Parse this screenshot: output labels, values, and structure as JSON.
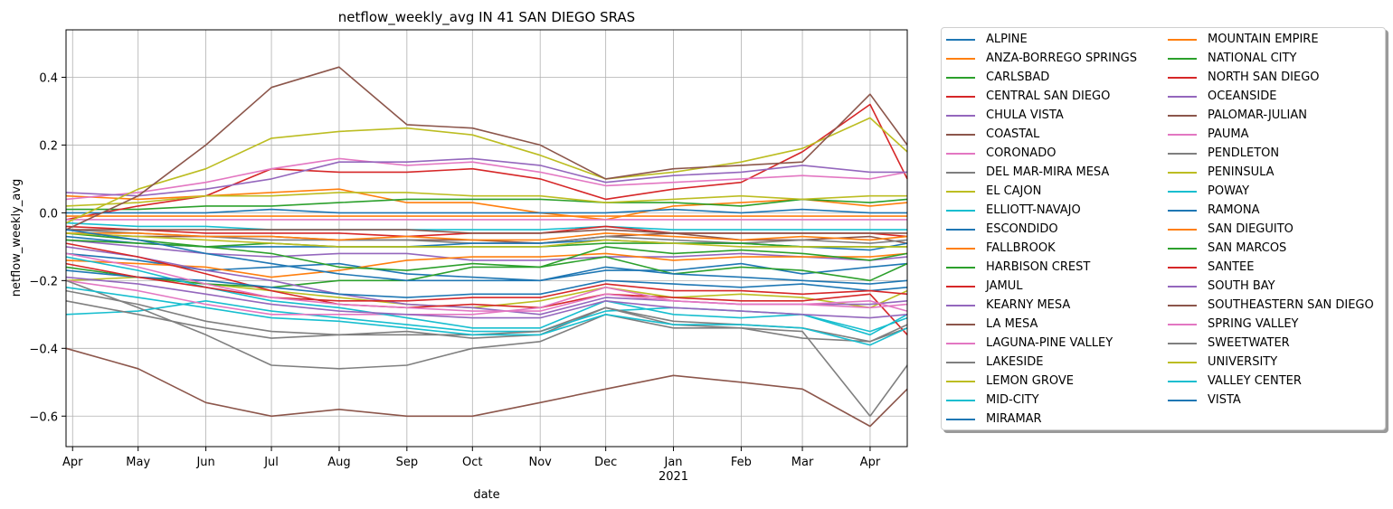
{
  "chart_data": {
    "type": "line",
    "title": "netflow_weekly_avg IN 41 SAN DIEGO SRAS",
    "xlabel": "date",
    "ylabel": "netflow_weekly_avg",
    "xlim": [
      "2020-03-29",
      "2021-04-18"
    ],
    "ylim": [
      -0.69,
      0.54
    ],
    "grid": true,
    "legend_position": "outside-right",
    "x_ticks": [
      {
        "date": "2020-04-01",
        "label": "Apr"
      },
      {
        "date": "2020-05-01",
        "label": "May"
      },
      {
        "date": "2020-06-01",
        "label": "Jun"
      },
      {
        "date": "2020-07-01",
        "label": "Jul"
      },
      {
        "date": "2020-08-01",
        "label": "Aug"
      },
      {
        "date": "2020-09-01",
        "label": "Sep"
      },
      {
        "date": "2020-10-01",
        "label": "Oct"
      },
      {
        "date": "2020-11-01",
        "label": "Nov"
      },
      {
        "date": "2020-12-01",
        "label": "Dec"
      },
      {
        "date": "2021-01-01",
        "label": "Jan"
      },
      {
        "date": "2021-02-01",
        "label": "Feb"
      },
      {
        "date": "2021-03-01",
        "label": "Mar"
      },
      {
        "date": "2021-04-01",
        "label": "Apr"
      }
    ],
    "year_label": {
      "date": "2021-01-01",
      "label": "2021"
    },
    "y_ticks": [
      {
        "value": 0.4,
        "label": "0.4"
      },
      {
        "value": 0.2,
        "label": "0.2"
      },
      {
        "value": 0.0,
        "label": "0.0"
      },
      {
        "value": -0.2,
        "label": "−0.2"
      },
      {
        "value": -0.4,
        "label": "−0.4"
      },
      {
        "value": -0.6,
        "label": "−0.6"
      }
    ],
    "x_dates": [
      "2020-03-29",
      "2020-05-01",
      "2020-06-01",
      "2020-07-01",
      "2020-08-01",
      "2020-09-01",
      "2020-10-01",
      "2020-11-01",
      "2020-12-01",
      "2021-01-01",
      "2021-02-01",
      "2021-03-01",
      "2021-04-01",
      "2021-04-18"
    ],
    "series": [
      {
        "name": "ALPINE",
        "color": "#1f77b4",
        "values": [
          -0.12,
          -0.14,
          -0.17,
          -0.16,
          -0.15,
          -0.18,
          -0.19,
          -0.2,
          -0.17,
          -0.17,
          -0.15,
          -0.18,
          -0.16,
          -0.15
        ]
      },
      {
        "name": "ANZA-BORREGO SPRINGS",
        "color": "#ff7f0e",
        "values": [
          0.05,
          0.04,
          0.05,
          0.06,
          0.07,
          0.03,
          0.03,
          0.0,
          -0.02,
          0.02,
          0.03,
          0.04,
          0.02,
          0.03
        ]
      },
      {
        "name": "CARLSBAD",
        "color": "#2ca02c",
        "values": [
          0.01,
          0.01,
          0.02,
          0.02,
          0.03,
          0.04,
          0.04,
          0.04,
          0.03,
          0.03,
          0.02,
          0.04,
          0.03,
          0.04
        ]
      },
      {
        "name": "CENTRAL SAN DIEGO",
        "color": "#d62728",
        "values": [
          -0.02,
          0.02,
          0.05,
          0.13,
          0.12,
          0.12,
          0.13,
          0.1,
          0.04,
          0.07,
          0.09,
          0.18,
          0.32,
          0.1
        ]
      },
      {
        "name": "CHULA VISTA",
        "color": "#9467bd",
        "values": [
          -0.08,
          -0.1,
          -0.12,
          -0.13,
          -0.12,
          -0.12,
          -0.14,
          -0.14,
          -0.13,
          -0.13,
          -0.12,
          -0.13,
          -0.14,
          -0.13
        ]
      },
      {
        "name": "COASTAL",
        "color": "#8c564b",
        "values": [
          -0.06,
          -0.07,
          -0.07,
          -0.07,
          -0.08,
          -0.08,
          -0.08,
          -0.09,
          -0.07,
          -0.06,
          -0.08,
          -0.08,
          -0.07,
          -0.09
        ]
      },
      {
        "name": "CORONADO",
        "color": "#e377c2",
        "values": [
          -0.02,
          -0.02,
          -0.02,
          -0.02,
          -0.02,
          -0.02,
          -0.02,
          -0.02,
          -0.02,
          -0.02,
          -0.02,
          -0.02,
          -0.02,
          -0.02
        ]
      },
      {
        "name": "DEL MAR-MIRA MESA",
        "color": "#7f7f7f",
        "values": [
          -0.05,
          -0.06,
          -0.07,
          -0.08,
          -0.08,
          -0.08,
          -0.09,
          -0.09,
          -0.07,
          -0.08,
          -0.09,
          -0.08,
          -0.09,
          -0.08
        ]
      },
      {
        "name": "EL CAJON",
        "color": "#bcbd22",
        "values": [
          -0.2,
          -0.19,
          -0.21,
          -0.23,
          -0.25,
          -0.27,
          -0.28,
          -0.26,
          -0.22,
          -0.25,
          -0.24,
          -0.25,
          -0.28,
          -0.23
        ]
      },
      {
        "name": "ELLIOTT-NAVAJO",
        "color": "#17becf",
        "values": [
          -0.03,
          -0.04,
          -0.04,
          -0.05,
          -0.05,
          -0.05,
          -0.05,
          -0.05,
          -0.04,
          -0.05,
          -0.05,
          -0.05,
          -0.05,
          -0.05
        ]
      },
      {
        "name": "ESCONDIDO",
        "color": "#1f77b4",
        "values": [
          -0.07,
          -0.09,
          -0.1,
          -0.1,
          -0.1,
          -0.1,
          -0.09,
          -0.09,
          -0.08,
          -0.09,
          -0.09,
          -0.1,
          -0.11,
          -0.09
        ]
      },
      {
        "name": "FALLBROOK",
        "color": "#ff7f0e",
        "values": [
          -0.14,
          -0.15,
          -0.16,
          -0.19,
          -0.17,
          -0.14,
          -0.13,
          -0.13,
          -0.12,
          -0.14,
          -0.13,
          -0.13,
          -0.13,
          -0.12
        ]
      },
      {
        "name": "HARBISON CREST",
        "color": "#2ca02c",
        "values": [
          -0.16,
          -0.19,
          -0.21,
          -0.22,
          -0.2,
          -0.2,
          -0.16,
          -0.16,
          -0.13,
          -0.18,
          -0.16,
          -0.17,
          -0.2,
          -0.15
        ]
      },
      {
        "name": "JAMUL",
        "color": "#d62728",
        "values": [
          -0.04,
          -0.05,
          -0.06,
          -0.06,
          -0.06,
          -0.07,
          -0.06,
          -0.06,
          -0.04,
          -0.06,
          -0.06,
          -0.06,
          -0.06,
          -0.07
        ]
      },
      {
        "name": "KEARNY MESA",
        "color": "#9467bd",
        "values": [
          -0.1,
          -0.13,
          -0.17,
          -0.2,
          -0.24,
          -0.27,
          -0.28,
          -0.3,
          -0.25,
          -0.26,
          -0.27,
          -0.27,
          -0.27,
          -0.26
        ]
      },
      {
        "name": "LA MESA",
        "color": "#8c564b",
        "values": [
          -0.05,
          -0.05,
          -0.05,
          -0.05,
          -0.05,
          -0.05,
          -0.06,
          -0.06,
          -0.05,
          -0.06,
          -0.06,
          -0.06,
          -0.06,
          -0.06
        ]
      },
      {
        "name": "LAGUNA-PINE VALLEY",
        "color": "#e377c2",
        "values": [
          0.04,
          0.06,
          0.09,
          0.13,
          0.16,
          0.14,
          0.15,
          0.12,
          0.08,
          0.09,
          0.1,
          0.11,
          0.1,
          0.12
        ]
      },
      {
        "name": "LAKESIDE",
        "color": "#7f7f7f",
        "values": [
          -0.23,
          -0.27,
          -0.32,
          -0.35,
          -0.36,
          -0.35,
          -0.37,
          -0.36,
          -0.28,
          -0.33,
          -0.34,
          -0.37,
          -0.38,
          -0.34
        ]
      },
      {
        "name": "LEMON GROVE",
        "color": "#bcbd22",
        "values": [
          0.02,
          0.03,
          0.05,
          0.05,
          0.06,
          0.06,
          0.05,
          0.05,
          0.03,
          0.04,
          0.05,
          0.04,
          0.05,
          0.05
        ]
      },
      {
        "name": "MID-CITY",
        "color": "#17becf",
        "values": [
          -0.3,
          -0.29,
          -0.26,
          -0.29,
          -0.31,
          -0.33,
          -0.35,
          -0.35,
          -0.29,
          -0.28,
          -0.29,
          -0.3,
          -0.35,
          -0.31
        ]
      },
      {
        "name": "MIRAMAR",
        "color": "#1f77b4",
        "values": [
          0.0,
          0.0,
          0.0,
          0.01,
          0.0,
          0.0,
          0.0,
          0.0,
          0.0,
          0.01,
          0.0,
          0.01,
          0.0,
          0.0
        ]
      },
      {
        "name": "MOUNTAIN EMPIRE",
        "color": "#ff7f0e",
        "values": [
          -0.01,
          -0.01,
          -0.01,
          -0.01,
          -0.01,
          -0.01,
          -0.01,
          -0.01,
          -0.01,
          -0.01,
          -0.01,
          -0.01,
          -0.01,
          -0.01
        ]
      },
      {
        "name": "NATIONAL CITY",
        "color": "#2ca02c",
        "values": [
          -0.06,
          -0.08,
          -0.1,
          -0.12,
          -0.16,
          -0.17,
          -0.15,
          -0.16,
          -0.1,
          -0.12,
          -0.11,
          -0.12,
          -0.14,
          -0.12
        ]
      },
      {
        "name": "NORTH SAN DIEGO",
        "color": "#d62728",
        "values": [
          -0.09,
          -0.13,
          -0.18,
          -0.23,
          -0.27,
          -0.28,
          -0.27,
          -0.28,
          -0.24,
          -0.25,
          -0.26,
          -0.26,
          -0.24,
          -0.36
        ]
      },
      {
        "name": "OCEANSIDE",
        "color": "#9467bd",
        "values": [
          0.06,
          0.05,
          0.07,
          0.1,
          0.15,
          0.15,
          0.16,
          0.14,
          0.09,
          0.11,
          0.12,
          0.14,
          0.12,
          0.12
        ]
      },
      {
        "name": "PALOMAR-JULIAN",
        "color": "#8c564b",
        "values": [
          -0.4,
          -0.46,
          -0.56,
          -0.6,
          -0.58,
          -0.6,
          -0.6,
          -0.56,
          -0.52,
          -0.48,
          -0.5,
          -0.52,
          -0.63,
          -0.52
        ]
      },
      {
        "name": "PAUMA",
        "color": "#e377c2",
        "values": [
          -0.2,
          -0.23,
          -0.27,
          -0.3,
          -0.3,
          -0.3,
          -0.3,
          -0.28,
          -0.22,
          -0.26,
          -0.27,
          -0.27,
          -0.26,
          -0.29
        ]
      },
      {
        "name": "PENDLETON",
        "color": "#7f7f7f",
        "values": [
          -0.2,
          -0.28,
          -0.36,
          -0.45,
          -0.46,
          -0.45,
          -0.4,
          -0.38,
          -0.3,
          -0.34,
          -0.34,
          -0.35,
          -0.6,
          -0.45
        ]
      },
      {
        "name": "PENINSULA",
        "color": "#bcbd22",
        "values": [
          -0.03,
          0.07,
          0.13,
          0.22,
          0.24,
          0.25,
          0.23,
          0.17,
          0.1,
          0.12,
          0.15,
          0.19,
          0.28,
          0.18
        ]
      },
      {
        "name": "POWAY",
        "color": "#17becf",
        "values": [
          -0.13,
          -0.17,
          -0.22,
          -0.26,
          -0.28,
          -0.31,
          -0.34,
          -0.34,
          -0.26,
          -0.3,
          -0.31,
          -0.3,
          -0.36,
          -0.3
        ]
      },
      {
        "name": "RAMONA",
        "color": "#1f77b4",
        "values": [
          -0.17,
          -0.19,
          -0.2,
          -0.22,
          -0.24,
          -0.25,
          -0.24,
          -0.24,
          -0.2,
          -0.21,
          -0.22,
          -0.21,
          -0.23,
          -0.22
        ]
      },
      {
        "name": "SAN DIEGUITO",
        "color": "#ff7f0e",
        "values": [
          -0.06,
          -0.06,
          -0.07,
          -0.07,
          -0.08,
          -0.07,
          -0.08,
          -0.08,
          -0.06,
          -0.07,
          -0.08,
          -0.07,
          -0.08,
          -0.07
        ]
      },
      {
        "name": "SAN MARCOS",
        "color": "#2ca02c",
        "values": [
          -0.08,
          -0.09,
          -0.1,
          -0.09,
          -0.1,
          -0.1,
          -0.1,
          -0.1,
          -0.09,
          -0.09,
          -0.09,
          -0.1,
          -0.1,
          -0.1
        ]
      },
      {
        "name": "SANTEE",
        "color": "#d62728",
        "values": [
          -0.15,
          -0.19,
          -0.22,
          -0.25,
          -0.26,
          -0.26,
          -0.25,
          -0.25,
          -0.21,
          -0.23,
          -0.23,
          -0.24,
          -0.23,
          -0.24
        ]
      },
      {
        "name": "SOUTH BAY",
        "color": "#9467bd",
        "values": [
          -0.19,
          -0.21,
          -0.24,
          -0.27,
          -0.29,
          -0.3,
          -0.31,
          -0.31,
          -0.26,
          -0.28,
          -0.29,
          -0.3,
          -0.31,
          -0.3
        ]
      },
      {
        "name": "SOUTHEASTERN SAN DIEGO",
        "color": "#8c564b",
        "values": [
          -0.05,
          0.05,
          0.2,
          0.37,
          0.43,
          0.26,
          0.25,
          0.2,
          0.1,
          0.13,
          0.14,
          0.15,
          0.35,
          0.2
        ]
      },
      {
        "name": "SPRING VALLEY",
        "color": "#e377c2",
        "values": [
          -0.12,
          -0.16,
          -0.21,
          -0.25,
          -0.27,
          -0.28,
          -0.29,
          -0.29,
          -0.24,
          -0.26,
          -0.27,
          -0.27,
          -0.28,
          -0.27
        ]
      },
      {
        "name": "SWEETWATER",
        "color": "#7f7f7f",
        "values": [
          -0.26,
          -0.3,
          -0.34,
          -0.37,
          -0.36,
          -0.36,
          -0.36,
          -0.35,
          -0.28,
          -0.32,
          -0.33,
          -0.34,
          -0.38,
          -0.33
        ]
      },
      {
        "name": "UNIVERSITY",
        "color": "#bcbd22",
        "values": [
          -0.06,
          -0.07,
          -0.08,
          -0.09,
          -0.1,
          -0.1,
          -0.1,
          -0.1,
          -0.08,
          -0.09,
          -0.1,
          -0.1,
          -0.1,
          -0.1
        ]
      },
      {
        "name": "VALLEY CENTER",
        "color": "#17becf",
        "values": [
          -0.22,
          -0.25,
          -0.28,
          -0.31,
          -0.32,
          -0.34,
          -0.36,
          -0.36,
          -0.3,
          -0.33,
          -0.33,
          -0.34,
          -0.39,
          -0.34
        ]
      },
      {
        "name": "VISTA",
        "color": "#1f77b4",
        "values": [
          -0.05,
          -0.08,
          -0.12,
          -0.15,
          -0.18,
          -0.2,
          -0.2,
          -0.2,
          -0.16,
          -0.18,
          -0.19,
          -0.2,
          -0.21,
          -0.2
        ]
      }
    ]
  }
}
